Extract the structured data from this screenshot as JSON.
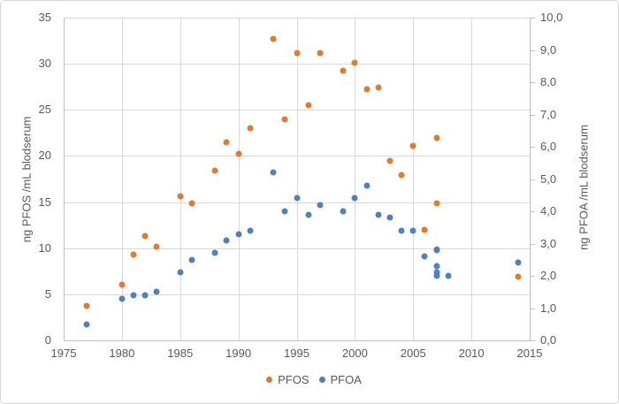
{
  "figure": {
    "background": "#ffffff",
    "border_color": "#d6d6d6",
    "gridline_color": "#d9d9d9",
    "axis_line_color": "#bfbfbf",
    "text_color": "#595959"
  },
  "chart_data": {
    "type": "scatter",
    "title": "",
    "grid": true,
    "legend_position": "bottom-center",
    "x_axis": {
      "min": 1975,
      "max": 2015,
      "tick_values": [
        1975,
        1980,
        1985,
        1990,
        1995,
        2000,
        2005,
        2010,
        2015
      ],
      "tick_labels": [
        "1975",
        "1980",
        "1985",
        "1990",
        "1995",
        "2000",
        "2005",
        "2010",
        "2015"
      ]
    },
    "y_left": {
      "title": "ng PFOS /mL blodserum",
      "min": 0,
      "max": 35,
      "tick_values": [
        0,
        5,
        10,
        15,
        20,
        25,
        30,
        35
      ],
      "tick_labels": [
        "0",
        "5",
        "10",
        "15",
        "20",
        "25",
        "30",
        "35"
      ]
    },
    "y_right": {
      "title": "ng PFOA /mL blodserum",
      "min": 0,
      "max": 10,
      "tick_values": [
        0,
        1,
        2,
        3,
        4,
        5,
        6,
        7,
        8,
        9,
        10
      ],
      "tick_labels": [
        "0,0",
        "1,0",
        "2,0",
        "3,0",
        "4,0",
        "5,0",
        "6,0",
        "7,0",
        "8,0",
        "9,0",
        "10,0"
      ]
    },
    "legend": [
      {
        "label": "PFOS",
        "color": "#e3792e"
      },
      {
        "label": "PFOA",
        "color": "#4e82be"
      }
    ],
    "series": [
      {
        "name": "PFOS",
        "axis": "left",
        "color": "#e3792e",
        "points": [
          [
            1977,
            3.7
          ],
          [
            1980,
            6.0
          ],
          [
            1981,
            9.3
          ],
          [
            1982,
            11.3
          ],
          [
            1983,
            10.2
          ],
          [
            1985,
            15.6
          ],
          [
            1986,
            14.9
          ],
          [
            1988,
            18.4
          ],
          [
            1989,
            21.5
          ],
          [
            1990,
            20.2
          ],
          [
            1991,
            23.0
          ],
          [
            1993,
            32.7
          ],
          [
            1994,
            24.0
          ],
          [
            1995,
            31.2
          ],
          [
            1996,
            25.5
          ],
          [
            1997,
            31.2
          ],
          [
            1999,
            29.2
          ],
          [
            2000,
            30.1
          ],
          [
            2001,
            27.2
          ],
          [
            2002,
            27.4
          ],
          [
            2003,
            19.5
          ],
          [
            2004,
            17.9
          ],
          [
            2005,
            21.1
          ],
          [
            2006,
            12.0
          ],
          [
            2007,
            22.0
          ],
          [
            2007,
            14.9
          ],
          [
            2007,
            9.9
          ],
          [
            2014,
            6.9
          ]
        ]
      },
      {
        "name": "PFOA",
        "axis": "right",
        "color": "#4e82be",
        "points": [
          [
            1977,
            0.5
          ],
          [
            1980,
            1.3
          ],
          [
            1981,
            1.4
          ],
          [
            1982,
            1.4
          ],
          [
            1983,
            1.5
          ],
          [
            1985,
            2.1
          ],
          [
            1986,
            2.5
          ],
          [
            1988,
            2.7
          ],
          [
            1989,
            3.1
          ],
          [
            1990,
            3.3
          ],
          [
            1991,
            3.4
          ],
          [
            1993,
            5.2
          ],
          [
            1994,
            4.0
          ],
          [
            1995,
            4.4
          ],
          [
            1996,
            3.9
          ],
          [
            1997,
            4.2
          ],
          [
            1999,
            4.0
          ],
          [
            2000,
            4.4
          ],
          [
            2001,
            4.8
          ],
          [
            2002,
            3.9
          ],
          [
            2003,
            3.8
          ],
          [
            2004,
            3.4
          ],
          [
            2005,
            3.4
          ],
          [
            2006,
            2.6
          ],
          [
            2007,
            2.8
          ],
          [
            2007,
            2.3
          ],
          [
            2007,
            2.1
          ],
          [
            2007,
            2.0
          ],
          [
            2008,
            2.0
          ],
          [
            2014,
            2.4
          ]
        ]
      }
    ]
  }
}
